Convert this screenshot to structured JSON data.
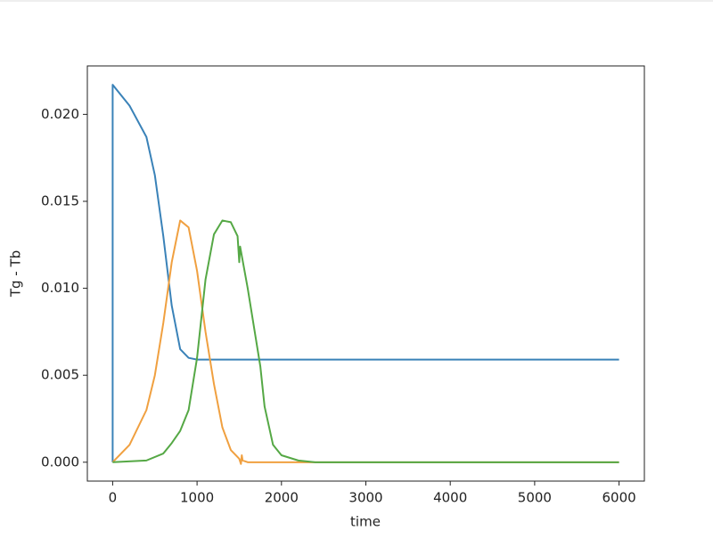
{
  "chart_data": {
    "type": "line",
    "xlabel": "time",
    "ylabel": "Tg - Tb",
    "xlim": [
      -300,
      6300
    ],
    "xticks": [
      0,
      1000,
      2000,
      3000,
      4000,
      5000,
      6000
    ],
    "ylim": [
      -0.001085,
      0.022785
    ],
    "yticks": [
      {
        "value": 0,
        "label": "0.000"
      },
      {
        "value": 0.005,
        "label": "0.005"
      },
      {
        "value": 0.01,
        "label": "0.010"
      },
      {
        "value": 0.015,
        "label": "0.015"
      },
      {
        "value": 0.02,
        "label": "0.020"
      }
    ],
    "series": [
      {
        "color": "#3a82b8",
        "x": [
          0,
          0,
          200,
          400,
          500,
          600,
          700,
          800,
          900,
          1000,
          6000
        ],
        "values": [
          0,
          0.0217,
          0.0205,
          0.0187,
          0.0165,
          0.013,
          0.009,
          0.0065,
          0.006,
          0.0059,
          0.0059
        ]
      },
      {
        "color": "#f0a040",
        "x": [
          0,
          200,
          400,
          500,
          600,
          700,
          800,
          900,
          1000,
          1100,
          1200,
          1300,
          1400,
          1500,
          1520,
          1530,
          1540,
          1600,
          2000,
          6000
        ],
        "values": [
          0,
          0.001,
          0.003,
          0.005,
          0.008,
          0.0115,
          0.0139,
          0.0135,
          0.011,
          0.0075,
          0.0045,
          0.002,
          0.0007,
          0.0002,
          -0.0001,
          0.0004,
          0.0001,
          0,
          0,
          0
        ]
      },
      {
        "color": "#55a845",
        "x": [
          0,
          400,
          600,
          700,
          800,
          900,
          1000,
          1100,
          1200,
          1300,
          1400,
          1480,
          1500,
          1510,
          1600,
          1700,
          1750,
          1800,
          1900,
          2000,
          2200,
          2400,
          6000
        ],
        "values": [
          0,
          0.0001,
          0.0005,
          0.0011,
          0.0018,
          0.003,
          0.006,
          0.0105,
          0.0131,
          0.0139,
          0.0138,
          0.013,
          0.0115,
          0.0124,
          0.01,
          0.007,
          0.0055,
          0.0032,
          0.001,
          0.0004,
          0.0001,
          0,
          0
        ]
      }
    ]
  }
}
